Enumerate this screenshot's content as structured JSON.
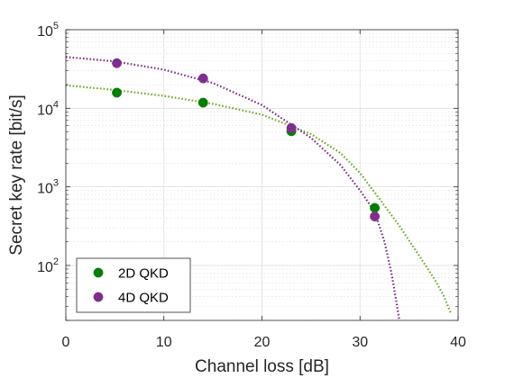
{
  "chart_data": {
    "type": "scatter",
    "title": "",
    "xlabel": "Channel loss [dB]",
    "ylabel": "Secret key rate [bit/s]",
    "xlim": [
      0,
      40
    ],
    "ylim": [
      20,
      100000
    ],
    "yscale": "log",
    "grid": true,
    "minor_grid": true,
    "legend_position": "bottom-left",
    "x_ticks": [
      "0",
      "10",
      "20",
      "30",
      "40"
    ],
    "y_ticks": [
      {
        "value": 100,
        "base": "10",
        "exp": "2"
      },
      {
        "value": 1000,
        "base": "10",
        "exp": "3"
      },
      {
        "value": 10000,
        "base": "10",
        "exp": "4"
      },
      {
        "value": 100000,
        "base": "10",
        "exp": "5"
      }
    ],
    "series": [
      {
        "name": "2D QKD",
        "color": "#007f00",
        "fit_color": "#6fa82b",
        "points": [
          [
            5.2,
            15800
          ],
          [
            14.0,
            11800
          ],
          [
            23.0,
            5100
          ],
          [
            31.5,
            540
          ]
        ],
        "fit": [
          [
            0,
            19600
          ],
          [
            5,
            17100
          ],
          [
            10,
            14400
          ],
          [
            15,
            11400
          ],
          [
            20,
            8300
          ],
          [
            25,
            4700
          ],
          [
            28,
            2700
          ],
          [
            30,
            1500
          ],
          [
            32,
            700
          ],
          [
            34,
            320
          ],
          [
            36,
            135
          ],
          [
            37.5,
            70
          ],
          [
            38.5,
            42
          ],
          [
            39.3,
            24
          ]
        ]
      },
      {
        "name": "4D QKD",
        "color": "#7e2f8e",
        "fit_color": "#7e2f8e",
        "points": [
          [
            5.2,
            37500
          ],
          [
            14.0,
            24000
          ],
          [
            23.0,
            5600
          ],
          [
            31.5,
            420
          ]
        ],
        "fit": [
          [
            0,
            45000
          ],
          [
            5,
            39500
          ],
          [
            10,
            31000
          ],
          [
            15,
            21000
          ],
          [
            20,
            11000
          ],
          [
            25,
            4200
          ],
          [
            28,
            1900
          ],
          [
            30,
            900
          ],
          [
            31.5,
            480
          ],
          [
            32.5,
            200
          ],
          [
            33.2,
            80
          ],
          [
            33.7,
            35
          ],
          [
            34.0,
            20
          ]
        ]
      }
    ]
  }
}
